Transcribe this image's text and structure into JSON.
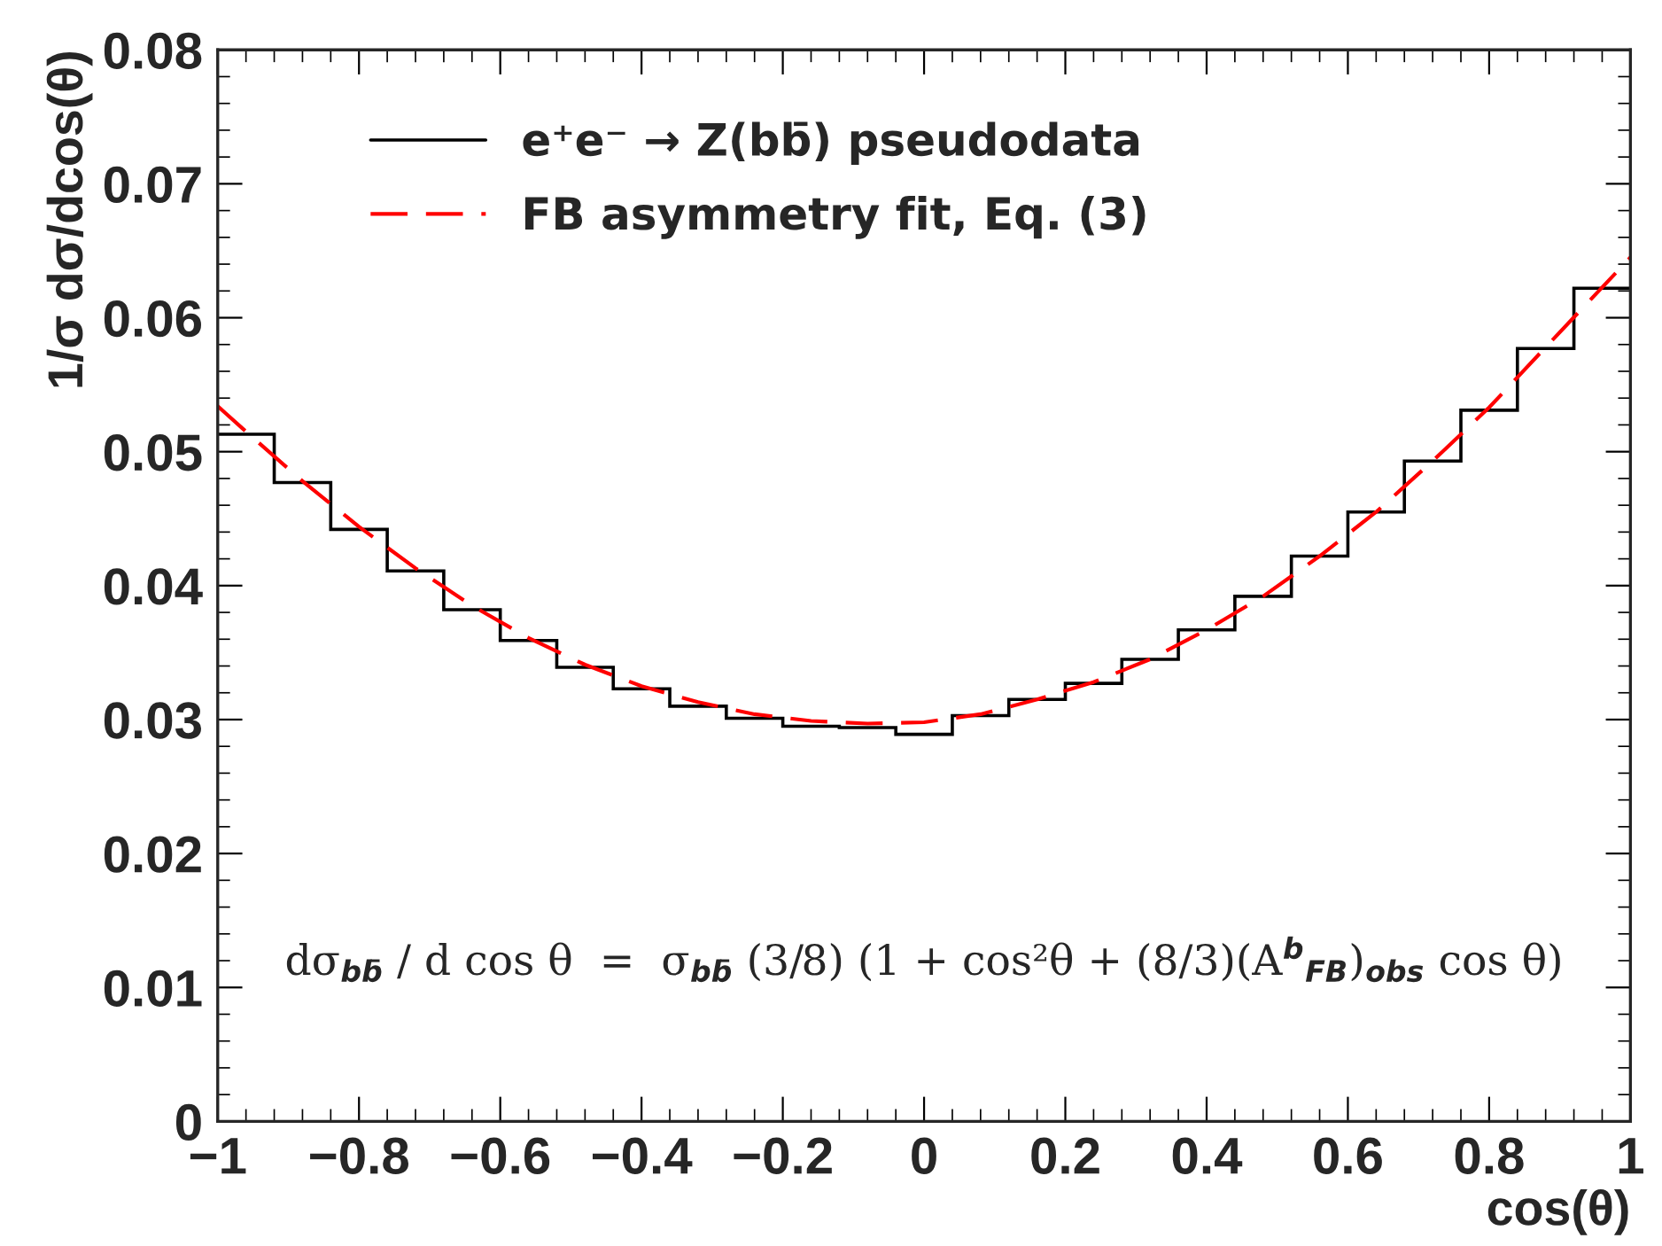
{
  "chart_data": {
    "type": "histogram",
    "xlabel": "cos(θ)",
    "ylabel": "1/σ dσ/dcos(θ)",
    "bins": [
      -1,
      -0.92,
      -0.84,
      -0.76,
      -0.68,
      -0.6,
      -0.52,
      -0.44,
      -0.36,
      -0.28,
      -0.2,
      -0.12,
      -0.04,
      0.04,
      0.12,
      0.2,
      0.28,
      0.36,
      0.44,
      0.52,
      0.6,
      0.68,
      0.76,
      0.84,
      0.92,
      1
    ],
    "series": [
      {
        "name": "e⁺e⁻ → Z(bb̄) pseudodata",
        "color": "#000000",
        "line_style": "solid",
        "values": [
          0.0513,
          0.0477,
          0.0442,
          0.0411,
          0.0382,
          0.0359,
          0.0339,
          0.0323,
          0.031,
          0.0301,
          0.0295,
          0.0294,
          0.0289,
          0.0303,
          0.0315,
          0.0327,
          0.0345,
          0.0367,
          0.0392,
          0.0422,
          0.0455,
          0.0493,
          0.0531,
          0.0577,
          0.0622
        ]
      },
      {
        "name": "FB asymmetry fit, Eq. (3)",
        "type": "line",
        "color": "#ff0000",
        "line_style": "dashed",
        "x": [
          -1,
          -0.96,
          -0.88,
          -0.8,
          -0.72,
          -0.64,
          -0.56,
          -0.48,
          -0.4,
          -0.32,
          -0.24,
          -0.16,
          -0.08,
          0,
          0.08,
          0.16,
          0.24,
          0.32,
          0.4,
          0.48,
          0.56,
          0.64,
          0.72,
          0.8,
          0.88,
          1
        ],
        "values": [
          0.0534,
          0.0515,
          0.0478,
          0.0444,
          0.0413,
          0.0385,
          0.0361,
          0.0341,
          0.0325,
          0.0313,
          0.0304,
          0.0299,
          0.0297,
          0.0298,
          0.0304,
          0.0315,
          0.0328,
          0.0345,
          0.0367,
          0.0392,
          0.0422,
          0.0455,
          0.0493,
          0.0533,
          0.0578,
          0.0645
        ]
      }
    ],
    "xlim": [
      -1,
      1
    ],
    "xticks": [
      {
        "value": -1,
        "label": "−1"
      },
      {
        "value": -0.8,
        "label": "−0.8"
      },
      {
        "value": -0.6,
        "label": "−0.6"
      },
      {
        "value": -0.4,
        "label": "−0.4"
      },
      {
        "value": -0.2,
        "label": "−0.2"
      },
      0,
      0.2,
      0.4,
      0.6,
      0.8,
      1
    ],
    "ylim": [
      0,
      0.08
    ],
    "yticks": [
      0,
      0.01,
      0.02,
      0.03,
      0.04,
      0.05,
      0.06,
      0.07,
      0.08
    ],
    "legend": "top left",
    "grid": false,
    "annotations": [
      "dσ$_{bb̄}$ / d cos θ  =  σ$_{bb̄}$ (3/8) (1 + cos²θ + (8/3)(A$^{b}$$_{FB}$)$_{obs}$ cos θ)"
    ]
  }
}
